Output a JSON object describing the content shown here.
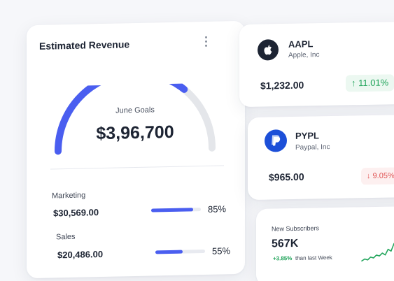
{
  "revenue": {
    "title": "Estimated Revenue",
    "goal_label": "June Goals",
    "goal_value": "$3,96,700",
    "gauge_progress": 0.72,
    "colors": {
      "accent": "#4a5ef0",
      "track": "#e4e6ea"
    },
    "metrics": [
      {
        "name": "Marketing",
        "amount": "$30,569.00",
        "percent_label": "85%",
        "percent": 85
      },
      {
        "name": "Sales",
        "amount": "$20,486.00",
        "percent_label": "55%",
        "percent": 55
      }
    ]
  },
  "stocks": [
    {
      "ticker": "AAPL",
      "company": "Apple, Inc",
      "price": "$1,232.00",
      "change": "↑ 11.01%",
      "direction": "up",
      "icon": "apple-icon"
    },
    {
      "ticker": "PYPL",
      "company": "Paypal, Inc",
      "price": "$965.00",
      "change": "↓ 9.05%",
      "direction": "down",
      "icon": "paypal-icon"
    }
  ],
  "subscribers": {
    "label": "New Subscribers",
    "value": "567K",
    "change": "+3.85%",
    "period": "than last Week",
    "trend": [
      3,
      4,
      3.5,
      5,
      4.5,
      6,
      5.5,
      7,
      6,
      9,
      8,
      12
    ]
  }
}
